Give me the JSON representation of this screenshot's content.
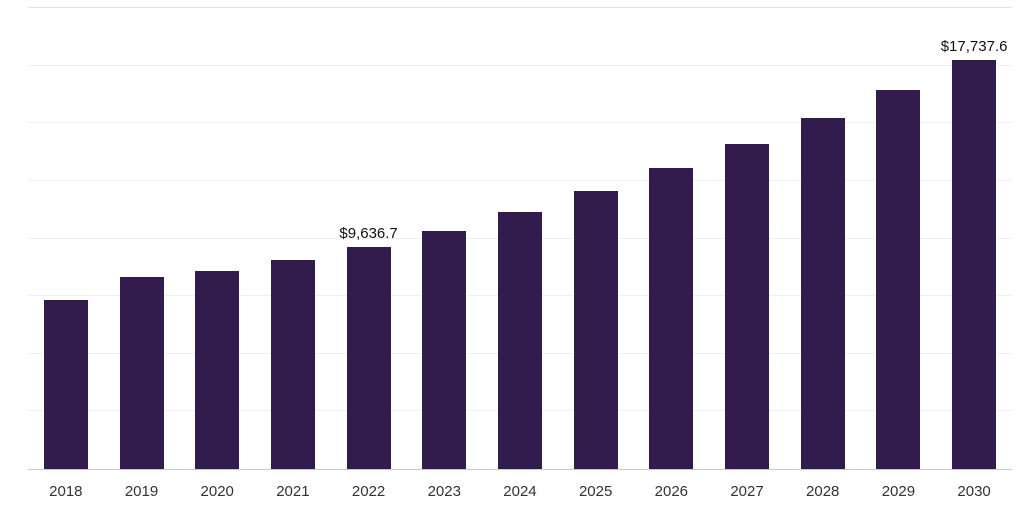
{
  "chart_data": {
    "type": "bar",
    "categories": [
      "2018",
      "2019",
      "2020",
      "2021",
      "2022",
      "2023",
      "2024",
      "2025",
      "2026",
      "2027",
      "2028",
      "2029",
      "2030"
    ],
    "values": [
      7350,
      8320,
      8590,
      9050,
      9636.7,
      10330,
      11130,
      12040,
      13050,
      14100,
      15250,
      16430,
      17737.6
    ],
    "data_labels": [
      null,
      null,
      null,
      null,
      "$9,636.7",
      null,
      null,
      null,
      null,
      null,
      null,
      null,
      "$17,737.6"
    ],
    "title": "",
    "xlabel": "",
    "ylabel": "",
    "ylim": [
      0,
      20000
    ],
    "grid_step": 2500,
    "grid": true,
    "legend": false,
    "bar_color": "#321b4d"
  }
}
